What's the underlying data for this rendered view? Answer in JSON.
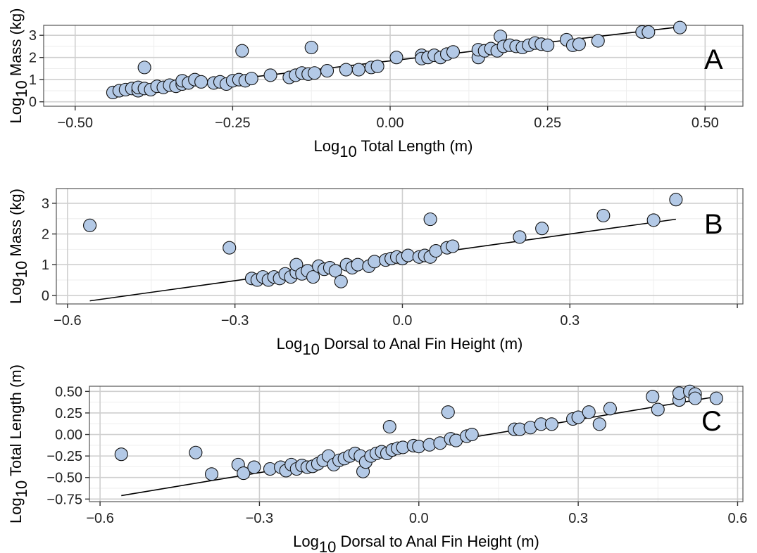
{
  "chart_data": [
    {
      "type": "scatter",
      "panel_label": "A",
      "xlabel": {
        "prefix": "Log",
        "sub": "10",
        "suffix": " Total Length (m)"
      },
      "ylabel": {
        "prefix": "Log",
        "sub": "10",
        "suffix": " Mass (kg)"
      },
      "xlim": [
        -0.55,
        0.56
      ],
      "ylim": [
        -0.2,
        3.45
      ],
      "xticks": [
        -0.5,
        -0.25,
        0,
        0.25,
        0.5
      ],
      "xtick_labels": [
        "−0.50",
        "−0.25",
        "0.00",
        "0.25",
        "0.50"
      ],
      "yticks": [
        0,
        1,
        2,
        3
      ],
      "ytick_labels": [
        "0",
        "1",
        "2",
        "3"
      ],
      "grid": true,
      "point_color": "#b3c9e6",
      "fit_line": {
        "x": [
          -0.44,
          0.46
        ],
        "y": [
          0.38,
          3.38
        ]
      },
      "points": [
        [
          -0.44,
          0.42
        ],
        [
          -0.43,
          0.5
        ],
        [
          -0.42,
          0.55
        ],
        [
          -0.41,
          0.6
        ],
        [
          -0.4,
          0.5
        ],
        [
          -0.4,
          0.65
        ],
        [
          -0.39,
          0.6
        ],
        [
          -0.39,
          1.55
        ],
        [
          -0.38,
          0.55
        ],
        [
          -0.37,
          0.7
        ],
        [
          -0.36,
          0.65
        ],
        [
          -0.35,
          0.75
        ],
        [
          -0.34,
          0.7
        ],
        [
          -0.33,
          0.8
        ],
        [
          -0.33,
          0.95
        ],
        [
          -0.32,
          0.85
        ],
        [
          -0.31,
          1.0
        ],
        [
          -0.3,
          0.9
        ],
        [
          -0.28,
          0.85
        ],
        [
          -0.27,
          0.9
        ],
        [
          -0.26,
          0.8
        ],
        [
          -0.25,
          0.95
        ],
        [
          -0.24,
          1.0
        ],
        [
          -0.235,
          2.3
        ],
        [
          -0.23,
          0.95
        ],
        [
          -0.22,
          1.05
        ],
        [
          -0.19,
          1.2
        ],
        [
          -0.16,
          1.1
        ],
        [
          -0.15,
          1.2
        ],
        [
          -0.14,
          1.3
        ],
        [
          -0.13,
          1.25
        ],
        [
          -0.125,
          2.45
        ],
        [
          -0.12,
          1.3
        ],
        [
          -0.1,
          1.4
        ],
        [
          -0.07,
          1.45
        ],
        [
          -0.05,
          1.45
        ],
        [
          -0.03,
          1.55
        ],
        [
          -0.02,
          1.6
        ],
        [
          0.01,
          2.0
        ],
        [
          0.05,
          2.1
        ],
        [
          0.05,
          1.95
        ],
        [
          0.06,
          2.0
        ],
        [
          0.07,
          2.1
        ],
        [
          0.08,
          2.0
        ],
        [
          0.09,
          2.15
        ],
        [
          0.1,
          2.25
        ],
        [
          0.14,
          2.0
        ],
        [
          0.14,
          2.35
        ],
        [
          0.15,
          2.3
        ],
        [
          0.16,
          2.4
        ],
        [
          0.17,
          2.3
        ],
        [
          0.175,
          2.95
        ],
        [
          0.18,
          2.5
        ],
        [
          0.19,
          2.55
        ],
        [
          0.2,
          2.5
        ],
        [
          0.21,
          2.45
        ],
        [
          0.22,
          2.55
        ],
        [
          0.23,
          2.65
        ],
        [
          0.24,
          2.6
        ],
        [
          0.25,
          2.55
        ],
        [
          0.28,
          2.8
        ],
        [
          0.29,
          2.55
        ],
        [
          0.3,
          2.6
        ],
        [
          0.33,
          2.75
        ],
        [
          0.4,
          3.15
        ],
        [
          0.41,
          3.15
        ],
        [
          0.46,
          3.35
        ]
      ]
    },
    {
      "type": "scatter",
      "panel_label": "B",
      "xlabel": {
        "prefix": "Log",
        "sub": "10",
        "suffix": " Dorsal to Anal Fin Height (m)"
      },
      "ylabel": {
        "prefix": "Log",
        "sub": "10",
        "suffix": " Mass (kg)"
      },
      "xlim": [
        -0.62,
        0.61
      ],
      "ylim": [
        -0.28,
        3.48
      ],
      "xticks": [
        -0.6,
        -0.3,
        0,
        0.3,
        0.6
      ],
      "xtick_labels": [
        "−0.6",
        "−0.3",
        "0.0",
        "0.3",
        ""
      ],
      "yticks": [
        0,
        1,
        2,
        3
      ],
      "ytick_labels": [
        "0",
        "1",
        "2",
        "3"
      ],
      "grid": true,
      "point_color": "#b3c9e6",
      "fit_line": {
        "x": [
          -0.56,
          0.49
        ],
        "y": [
          -0.18,
          2.48
        ]
      },
      "points": [
        [
          -0.56,
          2.28
        ],
        [
          -0.31,
          1.55
        ],
        [
          -0.27,
          0.55
        ],
        [
          -0.26,
          0.5
        ],
        [
          -0.25,
          0.6
        ],
        [
          -0.24,
          0.5
        ],
        [
          -0.23,
          0.6
        ],
        [
          -0.22,
          0.55
        ],
        [
          -0.21,
          0.7
        ],
        [
          -0.2,
          0.6
        ],
        [
          -0.19,
          0.75
        ],
        [
          -0.19,
          1.0
        ],
        [
          -0.18,
          0.7
        ],
        [
          -0.17,
          0.8
        ],
        [
          -0.16,
          0.6
        ],
        [
          -0.15,
          0.95
        ],
        [
          -0.14,
          0.85
        ],
        [
          -0.13,
          0.9
        ],
        [
          -0.12,
          0.8
        ],
        [
          -0.11,
          0.45
        ],
        [
          -0.1,
          1.0
        ],
        [
          -0.09,
          0.9
        ],
        [
          -0.08,
          1.0
        ],
        [
          -0.06,
          0.95
        ],
        [
          -0.05,
          1.1
        ],
        [
          -0.03,
          1.15
        ],
        [
          -0.02,
          1.2
        ],
        [
          -0.01,
          1.25
        ],
        [
          0.0,
          1.2
        ],
        [
          0.01,
          1.3
        ],
        [
          0.03,
          1.25
        ],
        [
          0.04,
          1.3
        ],
        [
          0.05,
          1.25
        ],
        [
          0.05,
          2.48
        ],
        [
          0.06,
          1.45
        ],
        [
          0.08,
          1.55
        ],
        [
          0.09,
          1.6
        ],
        [
          0.21,
          1.9
        ],
        [
          0.25,
          2.18
        ],
        [
          0.36,
          2.6
        ],
        [
          0.45,
          2.45
        ],
        [
          0.49,
          3.12
        ]
      ]
    },
    {
      "type": "scatter",
      "panel_label": "C",
      "xlabel": {
        "prefix": "Log",
        "sub": "10",
        "suffix": " Dorsal to Anal Fin Height (m)"
      },
      "ylabel": {
        "prefix": "Log",
        "sub": "10",
        "suffix": " Total Length (m)"
      },
      "xlim": [
        -0.62,
        0.61
      ],
      "ylim": [
        -0.78,
        0.56
      ],
      "xticks": [
        -0.6,
        -0.3,
        0,
        0.3,
        0.6
      ],
      "xtick_labels": [
        "−0.6",
        "−0.3",
        "0.0",
        "0.3",
        "0.6"
      ],
      "yticks": [
        -0.75,
        -0.5,
        -0.25,
        0,
        0.25,
        0.5
      ],
      "ytick_labels": [
        "−0.75",
        "−0.50",
        "−0.25",
        "0.00",
        "0.25",
        "0.50"
      ],
      "grid": true,
      "point_color": "#b3c9e6",
      "fit_line": {
        "x": [
          -0.56,
          0.57
        ],
        "y": [
          -0.71,
          0.45
        ]
      },
      "points": [
        [
          -0.56,
          -0.23
        ],
        [
          -0.42,
          -0.21
        ],
        [
          -0.39,
          -0.46
        ],
        [
          -0.34,
          -0.35
        ],
        [
          -0.33,
          -0.45
        ],
        [
          -0.31,
          -0.38
        ],
        [
          -0.28,
          -0.4
        ],
        [
          -0.26,
          -0.38
        ],
        [
          -0.25,
          -0.42
        ],
        [
          -0.24,
          -0.35
        ],
        [
          -0.23,
          -0.4
        ],
        [
          -0.22,
          -0.36
        ],
        [
          -0.21,
          -0.38
        ],
        [
          -0.2,
          -0.37
        ],
        [
          -0.19,
          -0.34
        ],
        [
          -0.18,
          -0.3
        ],
        [
          -0.17,
          -0.25
        ],
        [
          -0.16,
          -0.35
        ],
        [
          -0.15,
          -0.3
        ],
        [
          -0.14,
          -0.28
        ],
        [
          -0.13,
          -0.25
        ],
        [
          -0.12,
          -0.22
        ],
        [
          -0.11,
          -0.25
        ],
        [
          -0.105,
          -0.43
        ],
        [
          -0.1,
          -0.32
        ],
        [
          -0.09,
          -0.25
        ],
        [
          -0.08,
          -0.22
        ],
        [
          -0.07,
          -0.2
        ],
        [
          -0.06,
          -0.22
        ],
        [
          -0.055,
          0.09
        ],
        [
          -0.05,
          -0.18
        ],
        [
          -0.04,
          -0.16
        ],
        [
          -0.03,
          -0.15
        ],
        [
          -0.01,
          -0.13
        ],
        [
          0.0,
          -0.14
        ],
        [
          0.02,
          -0.12
        ],
        [
          0.04,
          -0.1
        ],
        [
          0.055,
          0.26
        ],
        [
          0.06,
          -0.05
        ],
        [
          0.07,
          -0.07
        ],
        [
          0.09,
          -0.02
        ],
        [
          0.1,
          0.0
        ],
        [
          0.18,
          0.06
        ],
        [
          0.19,
          0.06
        ],
        [
          0.21,
          0.08
        ],
        [
          0.23,
          0.12
        ],
        [
          0.25,
          0.12
        ],
        [
          0.29,
          0.18
        ],
        [
          0.3,
          0.2
        ],
        [
          0.32,
          0.26
        ],
        [
          0.34,
          0.12
        ],
        [
          0.36,
          0.3
        ],
        [
          0.44,
          0.44
        ],
        [
          0.45,
          0.29
        ],
        [
          0.49,
          0.4
        ],
        [
          0.49,
          0.48
        ],
        [
          0.51,
          0.5
        ],
        [
          0.52,
          0.47
        ],
        [
          0.52,
          0.42
        ],
        [
          0.56,
          0.42
        ]
      ]
    }
  ]
}
